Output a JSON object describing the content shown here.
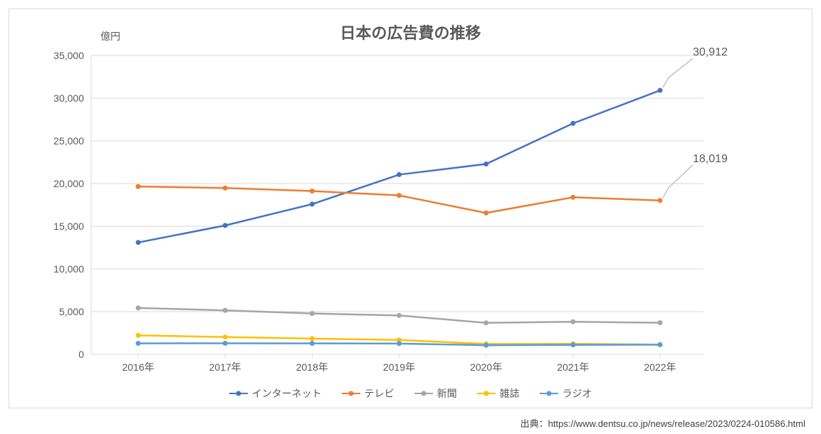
{
  "chart": {
    "title": "日本の広告費の推移",
    "y_unit_label": "億円",
    "type": "line",
    "background_color": "#ffffff",
    "border_color": "#d9d9d9",
    "grid_color": "#d9d9d9",
    "axis_color": "#d9d9d9",
    "text_color": "#595959",
    "title_fontsize": 22,
    "label_fontsize": 14,
    "ylim": [
      0,
      35000
    ],
    "ytick_step": 5000,
    "ytick_labels": [
      "0",
      "5,000",
      "10,000",
      "15,000",
      "20,000",
      "25,000",
      "30,000",
      "35,000"
    ],
    "categories": [
      "2016年",
      "2017年",
      "2018年",
      "2019年",
      "2020年",
      "2021年",
      "2022年"
    ],
    "line_width": 2.5,
    "marker_size": 7,
    "marker_style": "circle",
    "series": [
      {
        "name": "インターネット",
        "color": "#4472c4",
        "values": [
          13100,
          15094,
          17589,
          21048,
          22290,
          27052,
          30912
        ]
      },
      {
        "name": "テレビ",
        "color": "#ed7d31",
        "values": [
          19657,
          19478,
          19123,
          18612,
          16559,
          18393,
          18019
        ]
      },
      {
        "name": "新聞",
        "color": "#a5a5a5",
        "values": [
          5431,
          5147,
          4784,
          4547,
          3688,
          3815,
          3697
        ]
      },
      {
        "name": "雑誌",
        "color": "#ffc000",
        "values": [
          2223,
          2023,
          1841,
          1675,
          1223,
          1224,
          1140
        ]
      },
      {
        "name": "ラジオ",
        "color": "#5b9bd5",
        "values": [
          1285,
          1290,
          1278,
          1260,
          1066,
          1106,
          1129
        ]
      }
    ],
    "callouts": [
      {
        "series_index": 0,
        "point_index": 6,
        "label": "30,912"
      },
      {
        "series_index": 1,
        "point_index": 6,
        "label": "18,019"
      }
    ],
    "callout_line_color": "#a6a6a6",
    "source_label": "出典：https://www.dentsu.co.jp/news/release/2023/0224-010586.html"
  }
}
